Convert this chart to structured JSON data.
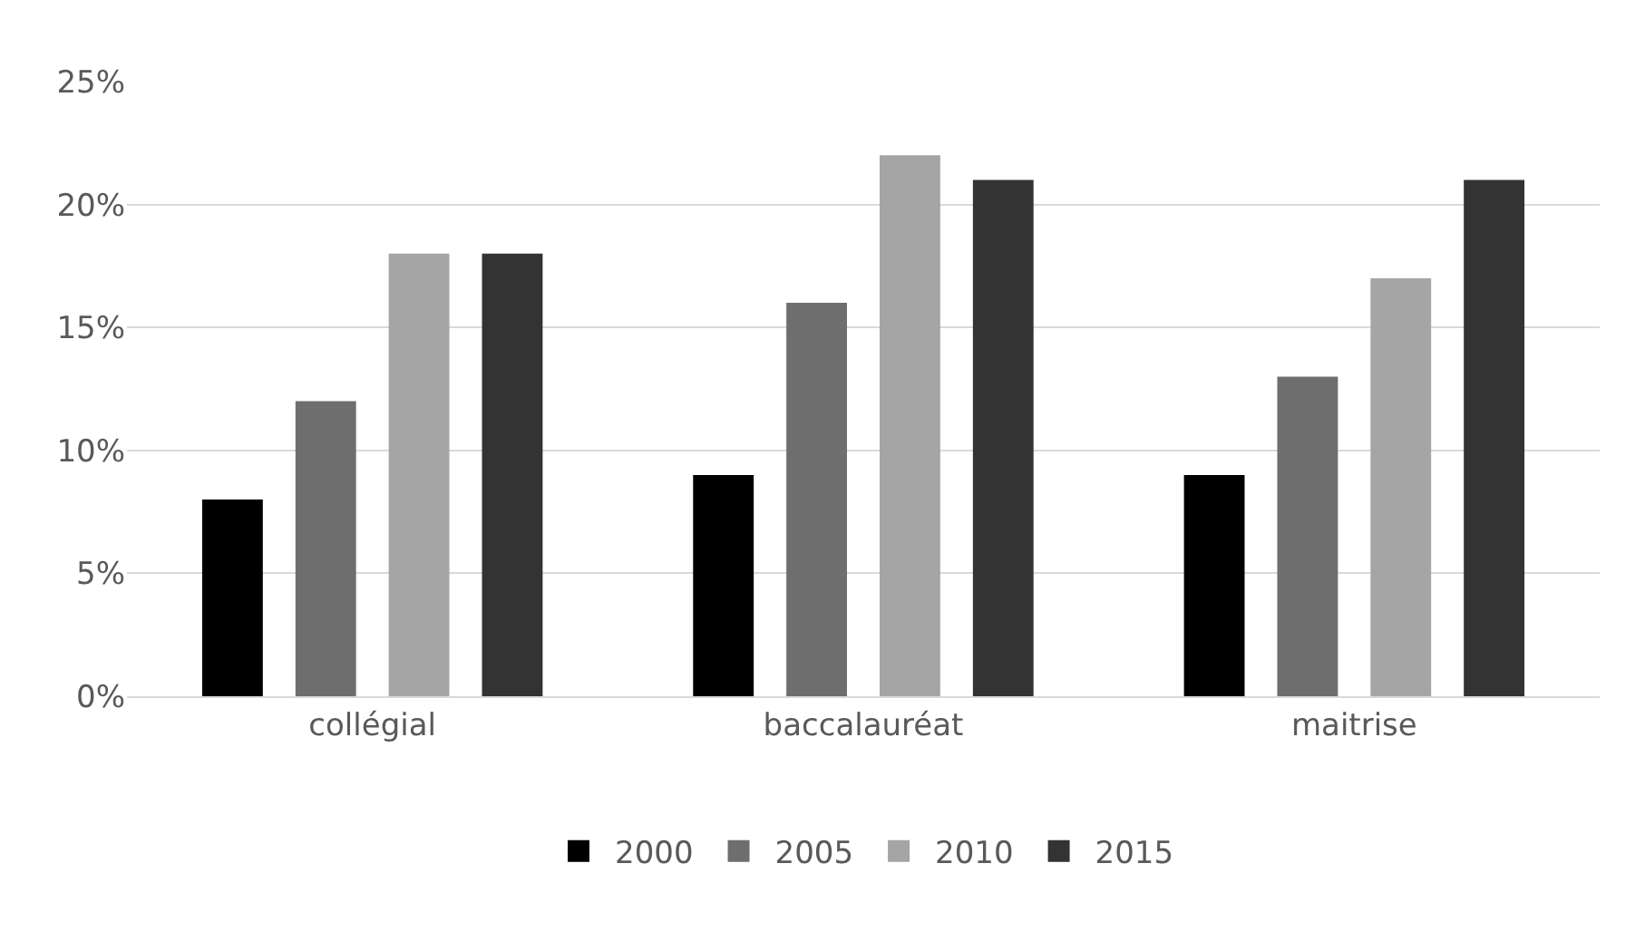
{
  "chart_data": {
    "type": "bar",
    "categories": [
      "collégial",
      "baccalauréat",
      "maitrise"
    ],
    "series": [
      {
        "name": "2000",
        "color": "#000000",
        "values": [
          8,
          9,
          9
        ]
      },
      {
        "name": "2005",
        "color": "#6e6e6e",
        "values": [
          12,
          16,
          13
        ]
      },
      {
        "name": "2010",
        "color": "#a5a5a5",
        "values": [
          18,
          22,
          17
        ]
      },
      {
        "name": "2015",
        "color": "#333333",
        "values": [
          18,
          21,
          21
        ]
      }
    ],
    "ylim": [
      0,
      25
    ],
    "yticks": [
      {
        "value": 0,
        "label": "0%"
      },
      {
        "value": 5,
        "label": "5%"
      },
      {
        "value": 10,
        "label": "10%"
      },
      {
        "value": 15,
        "label": "15%"
      },
      {
        "value": 20,
        "label": "20%"
      },
      {
        "value": 25,
        "label": "25%"
      }
    ],
    "grid": "y",
    "legend": "bottom"
  }
}
